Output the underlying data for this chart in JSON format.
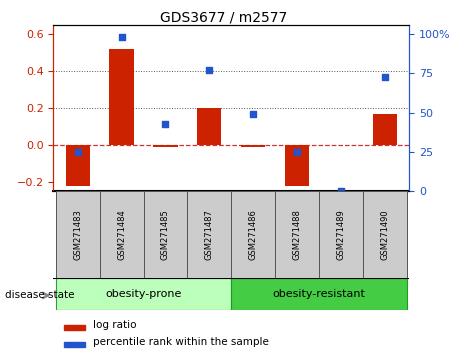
{
  "title": "GDS3677 / m2577",
  "samples": [
    "GSM271483",
    "GSM271484",
    "GSM271485",
    "GSM271487",
    "GSM271486",
    "GSM271488",
    "GSM271489",
    "GSM271490"
  ],
  "log_ratio": [
    -0.22,
    0.52,
    -0.01,
    0.2,
    -0.01,
    -0.22,
    0.0,
    0.17
  ],
  "percentile_rank": [
    25,
    98,
    43,
    77,
    49,
    25,
    0,
    73
  ],
  "left_ylim": [
    -0.25,
    0.65
  ],
  "right_ylim": [
    0,
    106
  ],
  "left_yticks": [
    -0.2,
    0.0,
    0.2,
    0.4,
    0.6
  ],
  "right_yticks": [
    0,
    25,
    50,
    75,
    100
  ],
  "bar_color": "#cc2200",
  "dot_color": "#2255cc",
  "prone_bg": "#bbffbb",
  "resistant_bg": "#44cc44",
  "sample_bg": "#cccccc",
  "zero_line_color": "#cc3333",
  "dotted_line_color": "#555555",
  "legend_bar_label": "log ratio",
  "legend_dot_label": "percentile rank within the sample",
  "disease_state_label": "disease state",
  "prone_label": "obesity-prone",
  "resistant_label": "obesity-resistant"
}
